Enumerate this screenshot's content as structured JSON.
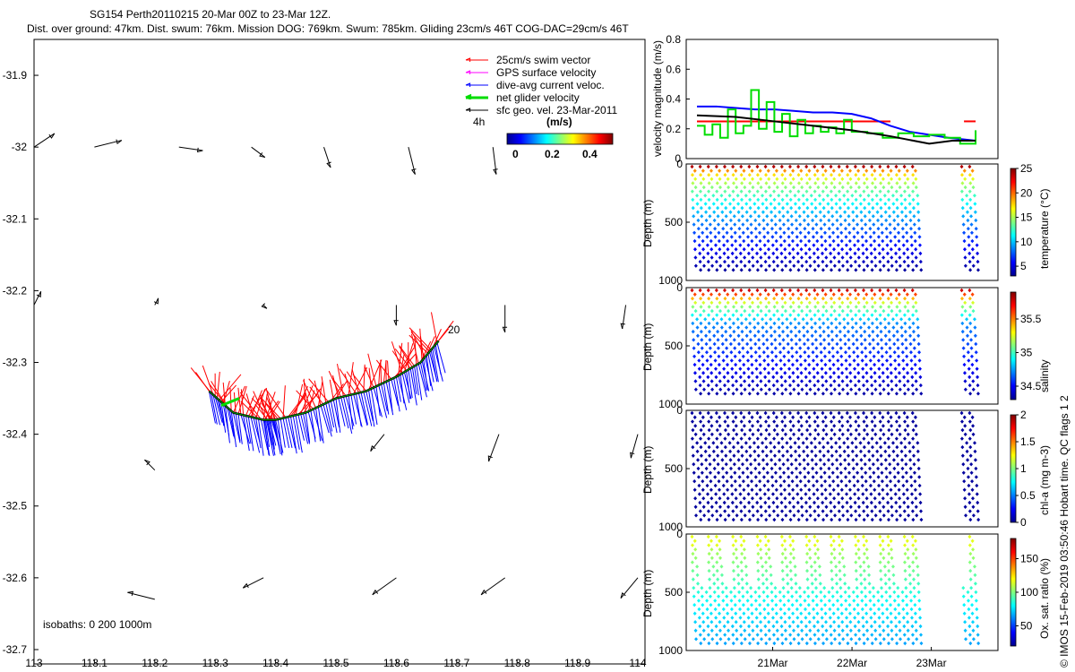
{
  "title_line1": "SG154 Perth20110215 20-Mar 00Z to 23-Mar 12Z.",
  "title_line2": "Dist. over ground: 47km. Dist. swum: 76km. Mission DOG: 769km. Swum: 785km. Gliding 23cm/s 46T COG-DAC=29cm/s 46T",
  "isobaths_label": "isobaths: 0   200  1000m",
  "end_label": "20",
  "scale_label": "4h",
  "colorbar_label": "(m/s)",
  "colorbar_ticks": [
    "0",
    "0.2",
    "0.4"
  ],
  "copyright": "© IMOS 15-Feb-2019 03:50:46 Hobart time. QC flags 1  2",
  "legend": [
    {
      "label": "25cm/s swim vector",
      "color": "#ff0000"
    },
    {
      "label": "GPS surface velocity",
      "color": "#ff00ff"
    },
    {
      "label": "dive-avg current veloc.",
      "color": "#0000ff"
    },
    {
      "label": "net glider velocity",
      "color": "#00dd00"
    },
    {
      "label": "sfc geo. vel. 23-Mar-2011",
      "color": "#000000"
    }
  ],
  "chart_data": [
    {
      "type": "scatter",
      "name": "map",
      "xticks": [
        "113",
        "113.1",
        "113.2",
        "113.3",
        "113.4",
        "113.5",
        "113.6",
        "113.7",
        "113.8",
        "113.9",
        "114"
      ],
      "yticks": [
        "-31.9",
        "-32",
        "-32.1",
        "-32.2",
        "-32.3",
        "-32.4",
        "-32.5",
        "-32.6",
        "-32.7"
      ],
      "xlim": [
        113,
        114
      ],
      "ylim": [
        -32.72,
        -31.85
      ],
      "glider_track": [
        [
          113.29,
          -32.34
        ],
        [
          113.33,
          -32.37
        ],
        [
          113.38,
          -32.38
        ],
        [
          113.4,
          -32.38
        ],
        [
          113.45,
          -32.37
        ],
        [
          113.5,
          -32.35
        ],
        [
          113.55,
          -32.34
        ],
        [
          113.6,
          -32.32
        ],
        [
          113.64,
          -32.3
        ],
        [
          113.67,
          -32.27
        ]
      ],
      "sfc_vectors": [
        {
          "lon": 113.0,
          "lat": -32.0,
          "u": 0.06,
          "v": 0.04
        },
        {
          "lon": 113.1,
          "lat": -32.0,
          "u": 0.08,
          "v": 0.02
        },
        {
          "lon": 113.24,
          "lat": -32.0,
          "u": 0.07,
          "v": -0.01
        },
        {
          "lon": 113.36,
          "lat": -32.0,
          "u": 0.04,
          "v": -0.03
        },
        {
          "lon": 113.48,
          "lat": -32.0,
          "u": 0.02,
          "v": -0.06
        },
        {
          "lon": 113.62,
          "lat": -32.0,
          "u": 0.02,
          "v": -0.08
        },
        {
          "lon": 113.76,
          "lat": -32.0,
          "u": 0.01,
          "v": -0.08
        },
        {
          "lon": 113.0,
          "lat": -32.22,
          "u": 0.02,
          "v": 0.04
        },
        {
          "lon": 113.2,
          "lat": -32.22,
          "u": 0.01,
          "v": 0.02
        },
        {
          "lon": 113.38,
          "lat": -32.22,
          "u": 0.01,
          "v": -0.01
        },
        {
          "lon": 113.6,
          "lat": -32.22,
          "u": 0.0,
          "v": -0.06
        },
        {
          "lon": 113.78,
          "lat": -32.22,
          "u": 0.0,
          "v": -0.08
        },
        {
          "lon": 113.98,
          "lat": -32.22,
          "u": -0.01,
          "v": -0.07
        },
        {
          "lon": 113.2,
          "lat": -32.45,
          "u": -0.03,
          "v": 0.03
        },
        {
          "lon": 113.58,
          "lat": -32.4,
          "u": -0.04,
          "v": -0.05
        },
        {
          "lon": 113.77,
          "lat": -32.4,
          "u": -0.03,
          "v": -0.08
        },
        {
          "lon": 114.0,
          "lat": -32.4,
          "u": -0.02,
          "v": -0.07
        },
        {
          "lon": 113.2,
          "lat": -32.63,
          "u": -0.08,
          "v": 0.02
        },
        {
          "lon": 113.38,
          "lat": -32.6,
          "u": -0.06,
          "v": -0.03
        },
        {
          "lon": 113.6,
          "lat": -32.6,
          "u": -0.07,
          "v": -0.05
        },
        {
          "lon": 113.78,
          "lat": -32.6,
          "u": -0.07,
          "v": -0.05
        },
        {
          "lon": 114.0,
          "lat": -32.6,
          "u": -0.05,
          "v": -0.06
        }
      ]
    },
    {
      "type": "line",
      "name": "velocity",
      "ylabel": "velocity magnitude (m/s)",
      "ylim": [
        0,
        0.8
      ],
      "xlim": [
        20.0,
        23.75
      ],
      "yticks": [
        "0",
        "0.2",
        "0.4",
        "0.6",
        "0.8"
      ],
      "series": [
        {
          "name": "swim",
          "color": "#ff0000",
          "x": [
            20.0,
            22.5,
            22.5,
            23.45,
            23.45,
            23.6
          ],
          "y": [
            0.25,
            0.25,
            null,
            null,
            0.25,
            0.25
          ]
        },
        {
          "name": "dive-avg",
          "color": "#0000ff",
          "x": [
            20.0,
            20.25,
            20.5,
            20.75,
            21.0,
            21.25,
            21.5,
            21.75,
            22.0,
            22.25,
            22.5,
            22.75,
            23.0,
            23.25,
            23.6
          ],
          "y": [
            0.35,
            0.35,
            0.34,
            0.33,
            0.33,
            0.32,
            0.31,
            0.31,
            0.3,
            0.27,
            0.22,
            0.18,
            0.16,
            0.14,
            0.12
          ]
        },
        {
          "name": "net glider",
          "color": "#00dd00",
          "x": [
            20.0,
            20.1,
            20.2,
            20.3,
            20.4,
            20.5,
            20.6,
            20.7,
            20.8,
            20.9,
            21.0,
            21.1,
            21.2,
            21.3,
            21.4,
            21.5,
            21.6,
            21.7,
            21.8,
            21.9,
            22.0,
            22.2,
            22.4,
            22.6,
            22.8,
            23.0,
            23.2,
            23.4,
            23.6
          ],
          "y": [
            0.22,
            0.16,
            0.23,
            0.14,
            0.33,
            0.17,
            0.22,
            0.46,
            0.2,
            0.38,
            0.18,
            0.3,
            0.15,
            0.26,
            0.17,
            0.22,
            0.18,
            0.21,
            0.17,
            0.26,
            0.18,
            0.17,
            0.14,
            0.17,
            0.15,
            0.16,
            0.14,
            0.1,
            0.19
          ]
        },
        {
          "name": "sfc geo",
          "color": "#000000",
          "x": [
            20.0,
            20.5,
            21.0,
            21.5,
            22.0,
            22.5,
            23.0,
            23.3,
            23.6
          ],
          "y": [
            0.29,
            0.28,
            0.25,
            0.22,
            0.19,
            0.15,
            0.1,
            0.12,
            0.12
          ]
        }
      ]
    },
    {
      "type": "scatter",
      "name": "temperature",
      "ylabel": "Depth (m)",
      "cbar_label": "temperature (°C)",
      "cbar_ticks": [
        "25",
        "20",
        "15",
        "10",
        "5"
      ],
      "cbar_range": [
        3,
        25
      ],
      "yticks": [
        "0",
        "500",
        "1000"
      ]
    },
    {
      "type": "scatter",
      "name": "salinity",
      "ylabel": "Depth (m)",
      "cbar_label": "salinity",
      "cbar_ticks": [
        "35.5",
        "35",
        "34.5"
      ],
      "cbar_range": [
        34.3,
        35.9
      ],
      "yticks": [
        "0",
        "500",
        "1000"
      ]
    },
    {
      "type": "scatter",
      "name": "chla",
      "ylabel": "Depth (m)",
      "cbar_label": "chl-a (mg m-3)",
      "cbar_ticks": [
        "2",
        "1.5",
        "1",
        "0.5",
        "0"
      ],
      "cbar_range": [
        0,
        2
      ],
      "yticks": [
        "0",
        "500",
        "1000"
      ]
    },
    {
      "type": "scatter",
      "name": "oxygen",
      "ylabel": "Depth (m)",
      "cbar_label": "Ox. sat. ratio (%)",
      "cbar_ticks": [
        "150",
        "100",
        "50"
      ],
      "cbar_range": [
        20,
        180
      ],
      "yticks": [
        "0",
        "500",
        "1000"
      ],
      "xticks": [
        "21Mar",
        "22Mar",
        "23Mar"
      ]
    }
  ]
}
